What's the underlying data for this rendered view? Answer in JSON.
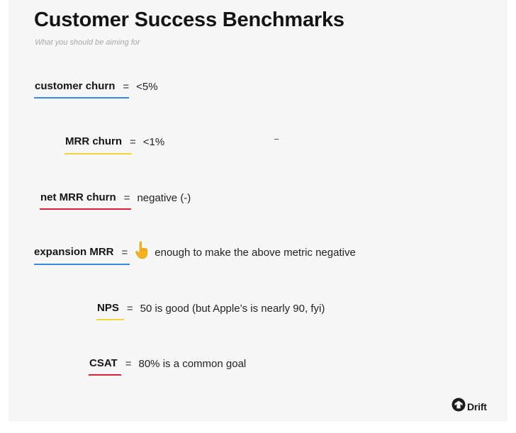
{
  "header": {
    "title": "Customer Success Benchmarks",
    "subtitle": "What you should be aiming for"
  },
  "separator": "=",
  "benchmarks": [
    {
      "term": "customer churn",
      "value": "<5%",
      "underline_color": "#3a86e4"
    },
    {
      "term": "MRR churn",
      "value": "<1%",
      "underline_color": "#f2d53b"
    },
    {
      "term": "net MRR churn",
      "value": "negative (-)",
      "underline_color": "#d9233c"
    },
    {
      "term": "expansion MRR",
      "value": "enough to make the above metric negative",
      "underline_color": "#3a86e4",
      "icon": "pointing-up-hand-icon"
    },
    {
      "term": "NPS",
      "value": "50 is good (but Apple’s is nearly 90, fyi)",
      "underline_color": "#f2d53b"
    },
    {
      "term": "CSAT",
      "value": "80% is a common goal",
      "underline_color": "#d9233c"
    }
  ],
  "stray_mark": "-",
  "brand": {
    "name": "Drift",
    "icon": "drift-logo-icon"
  }
}
